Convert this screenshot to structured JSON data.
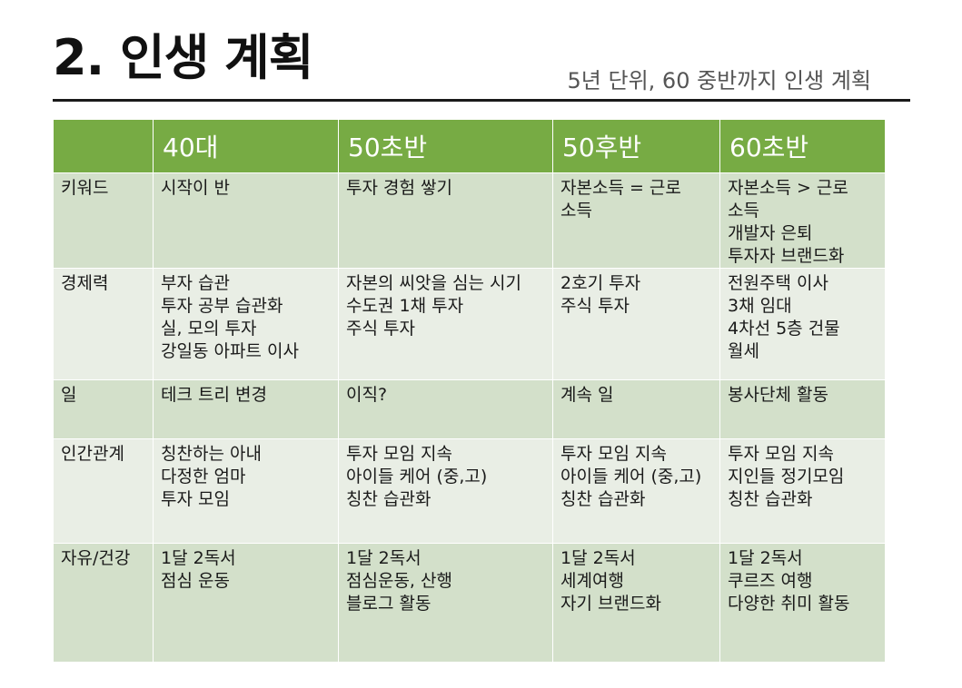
{
  "slide": {
    "title": "2. 인생 계획",
    "subtitle": "5년 단위, 60 중반까지 인생 계획"
  },
  "table": {
    "header": [
      "",
      "40대",
      "50초반",
      "50후반",
      "60초반"
    ],
    "rows": [
      {
        "label": "키워드",
        "cells": [
          [
            "시작이 반"
          ],
          [
            "투자 경험 쌓기"
          ],
          [
            "자본소득 = 근로",
            "소득"
          ],
          [
            "자본소득 > 근로",
            "소득",
            "개발자 은퇴",
            "투자자 브랜드화"
          ]
        ]
      },
      {
        "label": "경제력",
        "cells": [
          [
            "부자 습관",
            "투자 공부 습관화",
            "실, 모의 투자",
            "강일동 아파트 이사"
          ],
          [
            "자본의 씨앗을 심는 시기",
            "수도권 1채 투자",
            "주식 투자"
          ],
          [
            "2호기 투자",
            "주식 투자"
          ],
          [
            "전원주택 이사",
            "3채 임대",
            "4차선 5층 건물",
            "월세"
          ]
        ]
      },
      {
        "label": "일",
        "cells": [
          [
            "테크 트리 변경"
          ],
          [
            "이직?"
          ],
          [
            "계속 일"
          ],
          [
            "봉사단체 활동"
          ]
        ]
      },
      {
        "label": "인간관계",
        "cells": [
          [
            "칭찬하는 아내",
            "다정한 엄마",
            "투자 모임"
          ],
          [
            "투자 모임 지속",
            "아이들 케어 (중,고)",
            "칭찬 습관화"
          ],
          [
            "투자 모임 지속",
            "아이들 케어 (중,고)",
            "칭찬 습관화"
          ],
          [
            "투자 모임 지속",
            "지인들 정기모임",
            "칭찬 습관화"
          ]
        ]
      },
      {
        "label": "자유/건강",
        "cells": [
          [
            "1달 2독서",
            "점심 운동"
          ],
          [
            "1달 2독서",
            "점심운동, 산행",
            "블로그 활동"
          ],
          [
            "1달 2독서",
            "세계여행",
            "자기 브랜드화"
          ],
          [
            "1달 2독서",
            "쿠르즈 여행",
            "다양한 취미 활동"
          ]
        ]
      }
    ]
  },
  "colors": {
    "header_green": "#77ab44",
    "row_dark": "#d3e0ca",
    "row_light": "#e9eee5"
  }
}
